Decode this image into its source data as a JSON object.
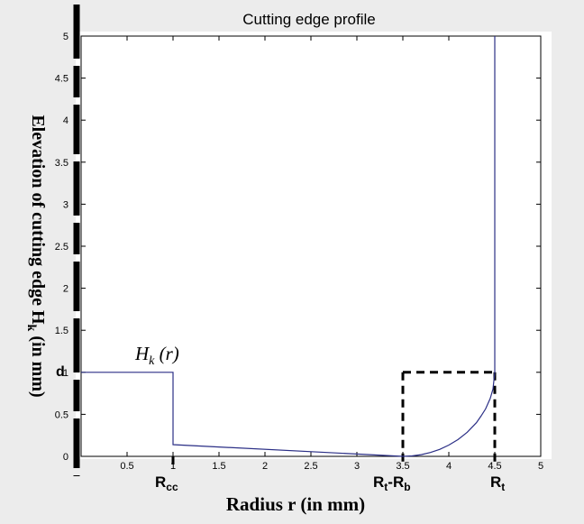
{
  "chart_data": {
    "type": "line",
    "title": "Cutting edge profile",
    "xlabel": "Radius r (in mm)",
    "ylabel_main": "Elevation of cutting edge  H",
    "ylabel_sub": "k",
    "ylabel_tail": " (in mm)",
    "xlim": [
      0,
      5
    ],
    "ylim": [
      0,
      5
    ],
    "grid": false,
    "x_ticks": [
      0.5,
      1,
      1.5,
      2,
      2.5,
      3,
      3.5,
      4,
      4.5,
      5
    ],
    "x_tick_labels": [
      "0.5",
      "1",
      "1.5",
      "2",
      "2.5",
      "3",
      "3.5",
      "4",
      "4.5",
      "5"
    ],
    "y_ticks": [
      0,
      0.5,
      1,
      1.5,
      2,
      2.5,
      3,
      3.5,
      4,
      4.5,
      5
    ],
    "y_tick_labels": [
      "0",
      "0.5",
      "1",
      "1.5",
      "2",
      "2.5",
      "3",
      "3.5",
      "4",
      "4.5",
      "5"
    ],
    "series": [
      {
        "color": "#2b2f86",
        "x": [
          0,
          1.0,
          1.0,
          3.5,
          3.6,
          3.7,
          3.8,
          3.9,
          4.0,
          4.1,
          4.2,
          4.3,
          4.35,
          4.4,
          4.45,
          4.48,
          4.5,
          4.5
        ],
        "y": [
          1.0,
          1.0,
          0.14,
          0.0,
          0.005,
          0.02,
          0.046,
          0.083,
          0.134,
          0.2,
          0.287,
          0.4,
          0.479,
          0.564,
          0.688,
          0.8,
          1.0,
          5.0
        ]
      }
    ],
    "reference_lines": {
      "color": "#000000",
      "segments": [
        {
          "x": [
            1.0,
            1.0
          ],
          "y": [
            0.0,
            -0.12
          ]
        },
        {
          "x": [
            3.5,
            3.5
          ],
          "y": [
            1.0,
            -0.12
          ]
        },
        {
          "x": [
            3.5,
            4.5
          ],
          "y": [
            1.0,
            1.0
          ]
        },
        {
          "x": [
            4.5,
            4.5
          ],
          "y": [
            1.0,
            -0.12
          ]
        }
      ]
    },
    "annotations": {
      "curve_label_main": "H",
      "curve_label_sub": "k",
      "curve_label_tail": " (r)",
      "d_label": "d",
      "rcc_main": "R",
      "rcc_sub": "cc",
      "rtrb_main1": "R",
      "rtrb_sub1": "t",
      "rtrb_dash": "-R",
      "rtrb_sub2": "b",
      "rt_main": "R",
      "rt_sub": "t"
    },
    "left_axis_bar_color": "#000000"
  }
}
